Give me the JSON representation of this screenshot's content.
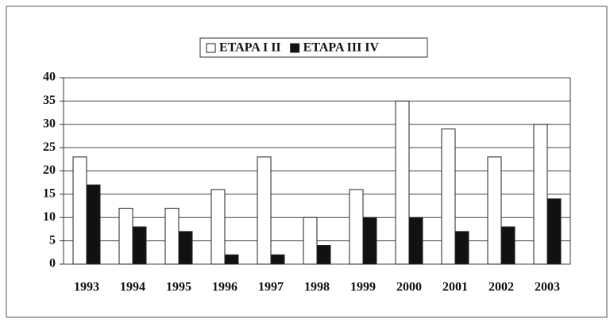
{
  "chart_data": {
    "type": "bar",
    "categories": [
      "1993",
      "1994",
      "1995",
      "1996",
      "1997",
      "1998",
      "1999",
      "2000",
      "2001",
      "2002",
      "2003"
    ],
    "series": [
      {
        "name": "ETAPA I II",
        "color": "#ffffff",
        "values": [
          23,
          12,
          12,
          16,
          23,
          10,
          16,
          35,
          29,
          23,
          30
        ]
      },
      {
        "name": "ETAPA III IV",
        "color": "#111111",
        "values": [
          17,
          8,
          7,
          2,
          2,
          4,
          10,
          10,
          7,
          8,
          14
        ]
      }
    ],
    "ylim": [
      0,
      40
    ],
    "yticks": [
      0,
      5,
      10,
      15,
      20,
      25,
      30,
      35,
      40
    ],
    "grid": true,
    "legend": "top"
  }
}
